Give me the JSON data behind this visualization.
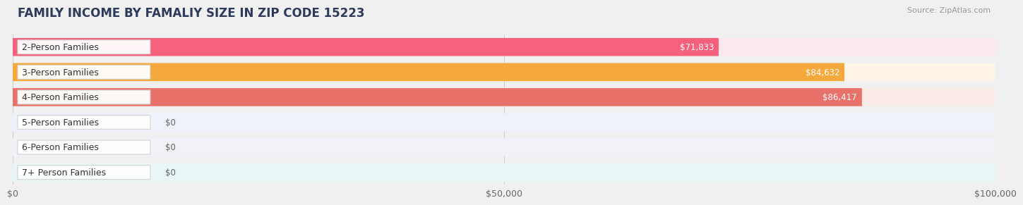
{
  "title": "FAMILY INCOME BY FAMALIY SIZE IN ZIP CODE 15223",
  "source": "Source: ZipAtlas.com",
  "categories": [
    "2-Person Families",
    "3-Person Families",
    "4-Person Families",
    "5-Person Families",
    "6-Person Families",
    "7+ Person Families"
  ],
  "values": [
    71833,
    84632,
    86417,
    0,
    0,
    0
  ],
  "value_labels": [
    "$71,833",
    "$84,632",
    "$86,417",
    "$0",
    "$0",
    "$0"
  ],
  "bar_colors": [
    "#f5607c",
    "#f5a83c",
    "#e8716a",
    "#9ab8e8",
    "#c4a0d8",
    "#72c8cc"
  ],
  "bar_bg_colors": [
    "#fce8ec",
    "#fdf3e6",
    "#faeae8",
    "#eef2fa",
    "#f4f0f8",
    "#e8f6f8"
  ],
  "dot_colors": [
    "#f5607c",
    "#f5a83c",
    "#e8716a",
    "#9ab8e8",
    "#c4a0d8",
    "#72c8cc"
  ],
  "xlim": [
    0,
    100000
  ],
  "xticks": [
    0,
    50000,
    100000
  ],
  "xtick_labels": [
    "$0",
    "$50,000",
    "$100,000"
  ],
  "background_color": "#f0f0f0",
  "title_fontsize": 12,
  "title_color": "#2e3a5a",
  "value_fontsize": 8.5,
  "label_fontsize": 9
}
